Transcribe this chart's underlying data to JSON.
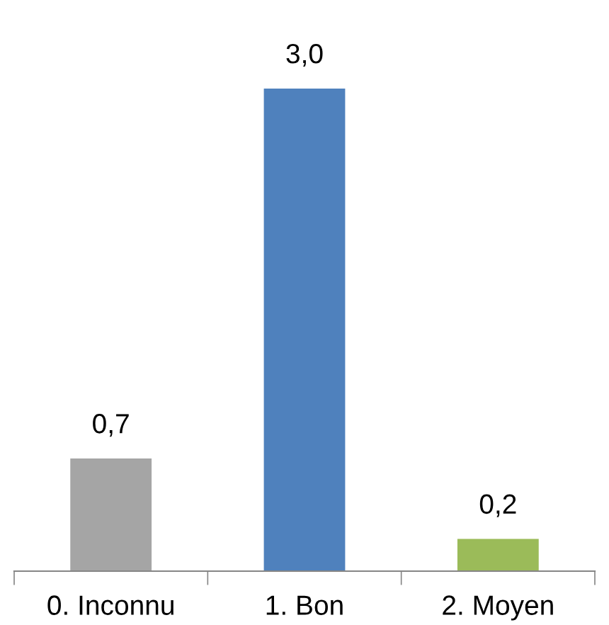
{
  "chart_data": {
    "type": "bar",
    "categories": [
      "0. Inconnu",
      "1. Bon",
      "2. Moyen"
    ],
    "values": [
      0.7,
      3.0,
      0.2
    ],
    "colors": [
      "#a5a5a5",
      "#4f81bd",
      "#9bbb59"
    ],
    "value_labels": [
      "0,7",
      "3,0",
      "0,2"
    ],
    "grid": false,
    "legend": false
  }
}
